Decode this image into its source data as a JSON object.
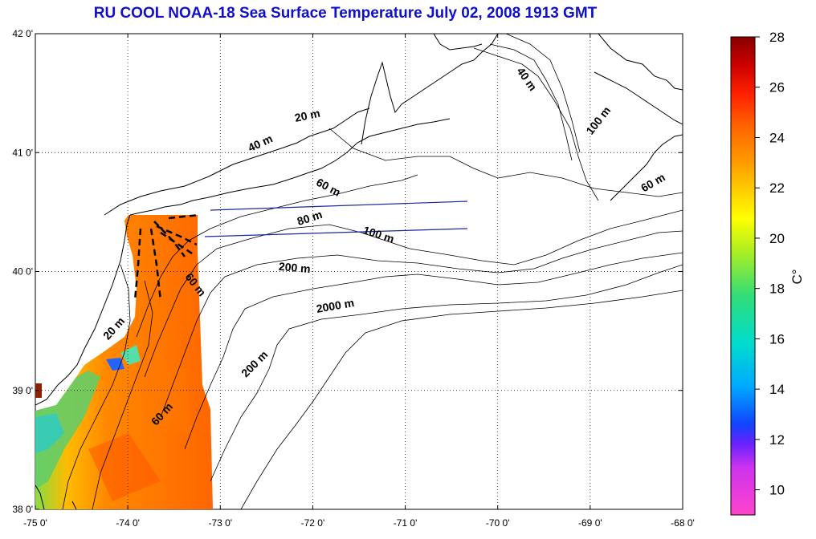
{
  "title": "RU COOL  NOAA-18 Sea Surface Temperature July 02, 2008 1913 GMT",
  "map": {
    "x_ticks": [
      "-75 0'",
      "-74 0'",
      "-73 0'",
      "-72 0'",
      "-71 0'",
      "-70 0'",
      "-69 0'",
      "-68 0'"
    ],
    "y_ticks": [
      "42 0'",
      "41 0'",
      "40 0'",
      "39 0'",
      "38 0'"
    ],
    "lon_range": [
      -75,
      -68
    ],
    "lat_range": [
      38,
      42
    ],
    "grid": true,
    "contour_labels": [
      {
        "text": "20 m",
        "lon": -72.05,
        "lat": 41.28,
        "rot": -12
      },
      {
        "text": "40 m",
        "lon": -72.55,
        "lat": 41.05,
        "rot": -25
      },
      {
        "text": "40 m",
        "lon": -69.72,
        "lat": 41.6,
        "rot": 55
      },
      {
        "text": "100 m",
        "lon": -68.88,
        "lat": 41.25,
        "rot": -52
      },
      {
        "text": "60 m",
        "lon": -71.85,
        "lat": 40.68,
        "rot": 28
      },
      {
        "text": "60 m",
        "lon": -68.3,
        "lat": 40.72,
        "rot": -30
      },
      {
        "text": "80 m",
        "lon": -72.02,
        "lat": 40.42,
        "rot": -18
      },
      {
        "text": "100 m",
        "lon": -71.3,
        "lat": 40.28,
        "rot": 18
      },
      {
        "text": "200 m",
        "lon": -72.2,
        "lat": 40.0,
        "rot": 5
      },
      {
        "text": "2000 m",
        "lon": -71.75,
        "lat": 39.68,
        "rot": -10
      },
      {
        "text": "60 m",
        "lon": -73.3,
        "lat": 39.87,
        "rot": 52
      },
      {
        "text": "20 m",
        "lon": -74.12,
        "lat": 39.5,
        "rot": -48
      },
      {
        "text": "200 m",
        "lon": -72.6,
        "lat": 39.2,
        "rot": -45
      },
      {
        "text": "60 m",
        "lon": -73.6,
        "lat": 38.78,
        "rot": -48
      }
    ]
  },
  "colorbar": {
    "unit": "C°",
    "min": 9,
    "max": 28,
    "ticks": [
      "28",
      "26",
      "24",
      "22",
      "20",
      "18",
      "16",
      "14",
      "12",
      "10"
    ],
    "tick_values": [
      28,
      26,
      24,
      22,
      20,
      18,
      16,
      14,
      12,
      10
    ],
    "colors": [
      "#ff44cc",
      "#cc33ee",
      "#6622ff",
      "#1144ff",
      "#00aaff",
      "#00ddcc",
      "#33dd77",
      "#aaee22",
      "#ffff00",
      "#ffcc00",
      "#ff9900",
      "#ff6600",
      "#ff2200",
      "#cc0000",
      "#880000"
    ]
  }
}
